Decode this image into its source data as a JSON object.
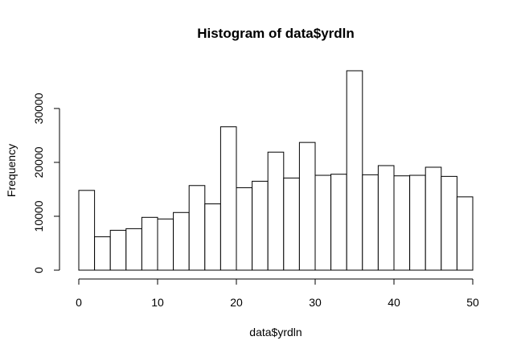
{
  "chart_data": {
    "type": "bar",
    "title": "Histogram of data$yrdln",
    "xlabel": "data$yrdln",
    "ylabel": "Frequency",
    "bin_width": 2,
    "x_bin_starts": [
      0,
      2,
      4,
      6,
      8,
      10,
      12,
      14,
      16,
      18,
      20,
      22,
      24,
      26,
      28,
      30,
      32,
      34,
      36,
      38,
      40,
      42,
      44,
      46,
      48
    ],
    "values": [
      14800,
      6200,
      7400,
      7700,
      9800,
      9500,
      10700,
      15700,
      12300,
      26600,
      15300,
      16500,
      21900,
      17100,
      23700,
      17600,
      17800,
      37000,
      17700,
      19400,
      17500,
      17600,
      19100,
      17400,
      13600
    ],
    "xlim": [
      0,
      50
    ],
    "ylim": [
      0,
      37000
    ],
    "x_ticks": [
      0,
      10,
      20,
      30,
      40,
      50
    ],
    "y_ticks": [
      0,
      10000,
      20000,
      30000
    ],
    "x_tick_labels": [
      "0",
      "10",
      "20",
      "30",
      "40",
      "50"
    ],
    "y_tick_labels": [
      "0",
      "10000",
      "20000",
      "30000"
    ],
    "bar_fill": "#ffffff",
    "bar_stroke": "#000000",
    "grid": false,
    "legend": "none"
  }
}
